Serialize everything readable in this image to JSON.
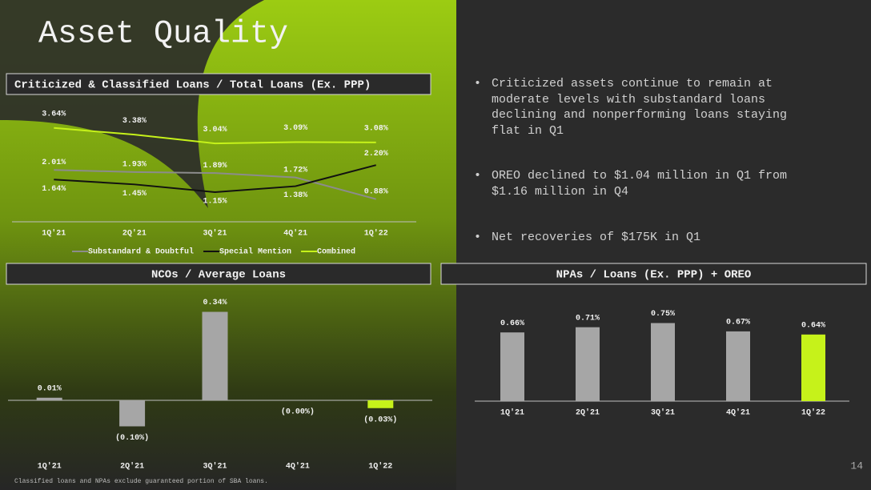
{
  "title": "Asset Quality",
  "bullets": [
    "Criticized assets continue to remain at moderate levels with substandard loans declining and nonperforming loans staying flat in Q1",
    "OREO declined to $1.04 million in Q1 from $1.16 million in Q4",
    "Net recoveries of $175K in Q1"
  ],
  "footnote": "Classified loans and NPAs exclude guaranteed portion of SBA loans.",
  "page_number": 14,
  "chart_data": [
    {
      "type": "line",
      "title": "Criticized & Classified Loans / Total Loans (Ex. PPP)",
      "categories": [
        "1Q'21",
        "2Q'21",
        "3Q'21",
        "4Q'21",
        "1Q'22"
      ],
      "series": [
        {
          "name": "Substandard & Doubtful",
          "color": "#8c8c8c",
          "values": [
            2.01,
            1.93,
            1.89,
            1.72,
            0.88
          ],
          "value_labels": [
            "2.01%",
            "1.93%",
            "1.89%",
            "1.72%",
            "0.88%"
          ]
        },
        {
          "name": "Special Mention",
          "color": "#111111",
          "values": [
            1.64,
            1.45,
            1.15,
            1.38,
            2.2
          ],
          "value_labels": [
            "1.64%",
            "1.45%",
            "1.15%",
            "1.38%",
            "2.20%"
          ]
        },
        {
          "name": "Combined",
          "color": "#c6f21a",
          "values": [
            3.64,
            3.38,
            3.04,
            3.09,
            3.08
          ],
          "value_labels": [
            "3.64%",
            "3.38%",
            "3.04%",
            "3.09%",
            "3.08%"
          ]
        }
      ],
      "legend": "bottom"
    },
    {
      "type": "bar",
      "title": "NCOs / Average Loans",
      "categories": [
        "1Q'21",
        "2Q'21",
        "3Q'21",
        "4Q'21",
        "1Q'22"
      ],
      "values": [
        0.01,
        -0.1,
        0.34,
        0,
        -0.03
      ],
      "value_labels": [
        "0.01%",
        "(0.10%)",
        "0.34%",
        "(0.00%)",
        "(0.03%)"
      ],
      "colors": [
        "#a6a6a6",
        "#a6a6a6",
        "#a6a6a6",
        "#a6a6a6",
        "#c6f21a"
      ]
    },
    {
      "type": "bar",
      "title": "NPAs / Loans (Ex. PPP) + OREO",
      "categories": [
        "1Q'21",
        "2Q'21",
        "3Q'21",
        "4Q'21",
        "1Q'22"
      ],
      "values": [
        0.66,
        0.71,
        0.75,
        0.67,
        0.64
      ],
      "value_labels": [
        "0.66%",
        "0.71%",
        "0.75%",
        "0.67%",
        "0.64%"
      ],
      "colors": [
        "#a6a6a6",
        "#a6a6a6",
        "#a6a6a6",
        "#a6a6a6",
        "#c6f21a"
      ]
    }
  ]
}
